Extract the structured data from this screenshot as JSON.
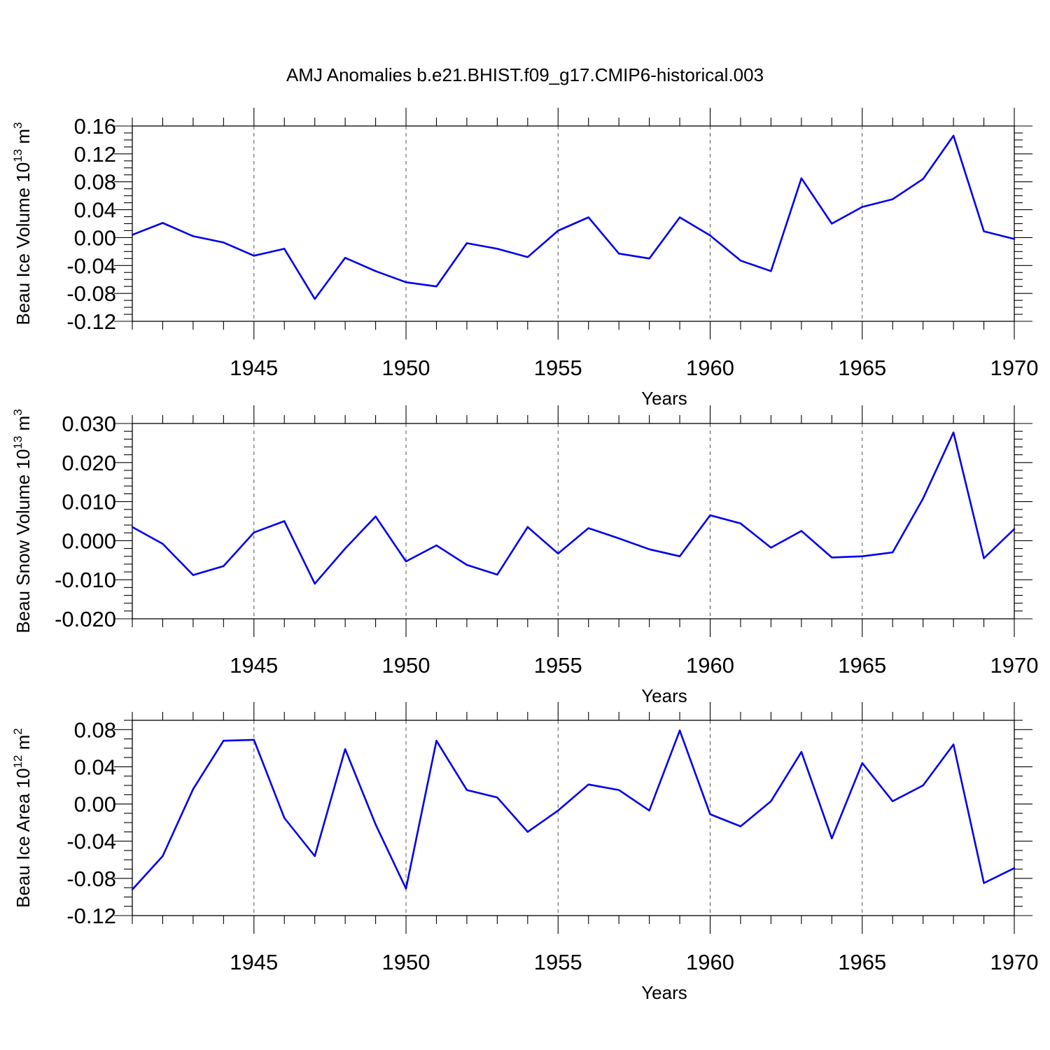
{
  "figure": {
    "title": "AMJ Anomalies b.e21.BHIST.f09_g17.CMIP6-historical.003"
  },
  "colors": {
    "line": "#0000ee"
  },
  "chart_data": [
    {
      "type": "line",
      "title": "",
      "ylabel": "Beau Ice Volume 10",
      "ylabel_exp": "13",
      "ylabel_unit": " m",
      "ylabel_unit_exp": "3",
      "xlabel": "Years",
      "xlim": [
        1941,
        1970
      ],
      "ylim": [
        -0.12,
        0.16
      ],
      "x_major_ticks": [
        1945,
        1950,
        1955,
        1960,
        1965,
        1970
      ],
      "x_tick_labels": [
        "1945",
        "1950",
        "1955",
        "1960",
        "1965",
        "1970"
      ],
      "y_major_ticks": [
        -0.12,
        -0.08,
        -0.04,
        0.0,
        0.04,
        0.08,
        0.12,
        0.16
      ],
      "y_tick_labels": [
        "-0.12",
        "-0.08",
        "-0.04",
        "0.00",
        "0.04",
        "0.08",
        "0.12",
        "0.16"
      ],
      "y_minor_step": 0.01,
      "grid": "dashed vertical at major x ticks",
      "x": [
        1941,
        1942,
        1943,
        1944,
        1945,
        1946,
        1947,
        1948,
        1949,
        1950,
        1951,
        1952,
        1953,
        1954,
        1955,
        1956,
        1957,
        1958,
        1959,
        1960,
        1961,
        1962,
        1963,
        1964,
        1965,
        1966,
        1967,
        1968,
        1969,
        1970
      ],
      "values": [
        0.004,
        0.021,
        0.002,
        -0.007,
        -0.026,
        -0.016,
        -0.088,
        -0.029,
        -0.048,
        -0.064,
        -0.07,
        -0.008,
        -0.016,
        -0.028,
        0.01,
        0.029,
        -0.023,
        -0.03,
        0.029,
        0.003,
        -0.033,
        -0.048,
        0.085,
        0.02,
        0.044,
        0.055,
        0.084,
        0.146,
        0.009,
        -0.002
      ]
    },
    {
      "type": "line",
      "title": "",
      "ylabel": "Beau Snow Volume 10",
      "ylabel_exp": "13",
      "ylabel_unit": " m",
      "ylabel_unit_exp": "3",
      "xlabel": "Years",
      "xlim": [
        1941,
        1970
      ],
      "ylim": [
        -0.02,
        0.03
      ],
      "x_major_ticks": [
        1945,
        1950,
        1955,
        1960,
        1965,
        1970
      ],
      "x_tick_labels": [
        "1945",
        "1950",
        "1955",
        "1960",
        "1965",
        "1970"
      ],
      "y_major_ticks": [
        -0.02,
        -0.01,
        0.0,
        0.01,
        0.02,
        0.03
      ],
      "y_tick_labels": [
        "-0.020",
        "-0.010",
        "0.000",
        "0.010",
        "0.020",
        "0.030"
      ],
      "y_minor_step": 0.002,
      "grid": "dashed vertical at major x ticks",
      "x": [
        1941,
        1942,
        1943,
        1944,
        1945,
        1946,
        1947,
        1948,
        1949,
        1950,
        1951,
        1952,
        1953,
        1954,
        1955,
        1956,
        1957,
        1958,
        1959,
        1960,
        1961,
        1962,
        1963,
        1964,
        1965,
        1966,
        1967,
        1968,
        1969,
        1970
      ],
      "values": [
        0.0035,
        -0.0008,
        -0.0088,
        -0.0065,
        0.0021,
        0.005,
        -0.011,
        -0.002,
        0.0062,
        -0.0053,
        -0.0012,
        -0.0062,
        -0.0087,
        0.0035,
        -0.0033,
        0.0032,
        0.0006,
        -0.0022,
        -0.004,
        0.0065,
        0.0044,
        -0.0018,
        0.0025,
        -0.0043,
        -0.004,
        -0.003,
        0.0108,
        0.0277,
        -0.0045,
        0.003
      ]
    },
    {
      "type": "line",
      "title": "",
      "ylabel": "Beau Ice Area 10",
      "ylabel_exp": "12",
      "ylabel_unit": " m",
      "ylabel_unit_exp": "2",
      "xlabel": "Years",
      "xlim": [
        1941,
        1970
      ],
      "ylim": [
        -0.12,
        0.09
      ],
      "x_major_ticks": [
        1945,
        1950,
        1955,
        1960,
        1965,
        1970
      ],
      "x_tick_labels": [
        "1945",
        "1950",
        "1955",
        "1960",
        "1965",
        "1970"
      ],
      "y_major_ticks": [
        -0.12,
        -0.08,
        -0.04,
        0.0,
        0.04,
        0.08
      ],
      "y_tick_labels": [
        "-0.12",
        "-0.08",
        "-0.04",
        "0.00",
        "0.04",
        "0.08"
      ],
      "y_minor_step": 0.01,
      "grid": "dashed vertical at major x ticks",
      "x": [
        1941,
        1942,
        1943,
        1944,
        1945,
        1946,
        1947,
        1948,
        1949,
        1950,
        1951,
        1952,
        1953,
        1954,
        1955,
        1956,
        1957,
        1958,
        1959,
        1960,
        1961,
        1962,
        1963,
        1964,
        1965,
        1966,
        1967,
        1968,
        1969,
        1970
      ],
      "values": [
        -0.092,
        -0.056,
        0.016,
        0.068,
        0.069,
        -0.015,
        -0.056,
        0.059,
        -0.022,
        -0.091,
        0.068,
        0.015,
        0.007,
        -0.03,
        -0.007,
        0.021,
        0.015,
        -0.007,
        0.079,
        -0.011,
        -0.024,
        0.003,
        0.056,
        -0.037,
        0.044,
        0.003,
        0.02,
        0.064,
        -0.085,
        -0.069
      ]
    }
  ]
}
